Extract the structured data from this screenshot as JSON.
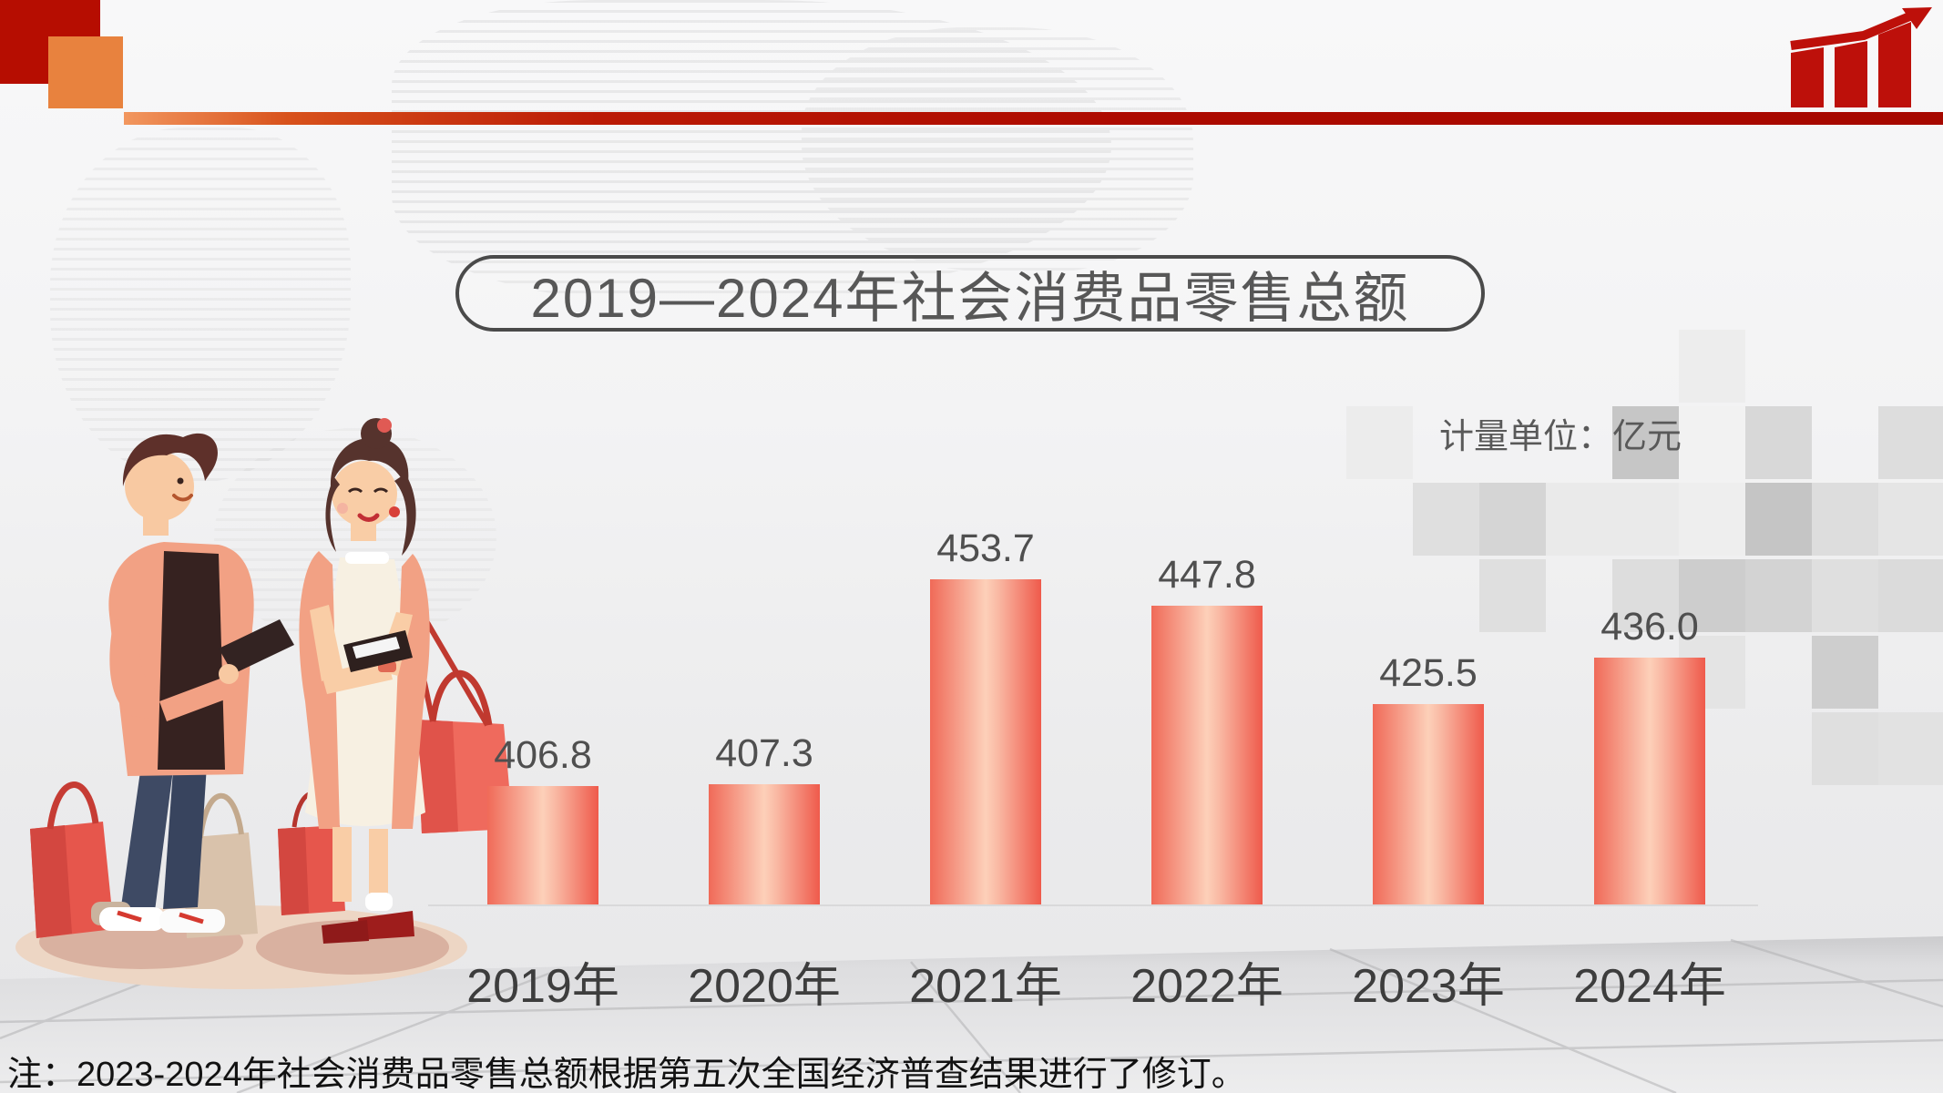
{
  "slide": {
    "title": "2019—2024年社会消费品零售总额",
    "unit_label": "计量单位：亿元",
    "note": "注：2023-2024年社会消费品零售总额根据第五次全国经济普查结果进行了修订。"
  },
  "icons": {
    "top_right": "rising-bar-chart-with-arrow",
    "left_art": "two-shoppers-with-phones-and-shopping-bags"
  },
  "colors": {
    "accent_dark_red": "#b00b00",
    "accent_orange": "#e8823e",
    "band_gradient_start": "#f2975f",
    "band_gradient_end": "#a60800",
    "bar_edge": "#f0604f",
    "bar_highlight": "#fdd0b9",
    "title_text": "#575757",
    "axis_label_text": "#3d3d3d",
    "value_label_text": "#4f4f4f",
    "unit_text": "#595959",
    "note_text": "#121212"
  },
  "chart_data": {
    "type": "bar",
    "title": "2019—2024年社会消费品零售总额",
    "unit": "亿元",
    "categories": [
      "2019年",
      "2020年",
      "2021年",
      "2022年",
      "2023年",
      "2024年"
    ],
    "values": [
      406.8,
      407.3,
      453.7,
      447.8,
      425.5,
      436.0
    ],
    "value_label_format": "one-decimal",
    "labels_position": "above-bars",
    "xlabel": "",
    "ylabel": "",
    "y_axis_shown": false,
    "grid": false,
    "legend": "none",
    "ylim_implied": [
      380,
      470
    ]
  }
}
